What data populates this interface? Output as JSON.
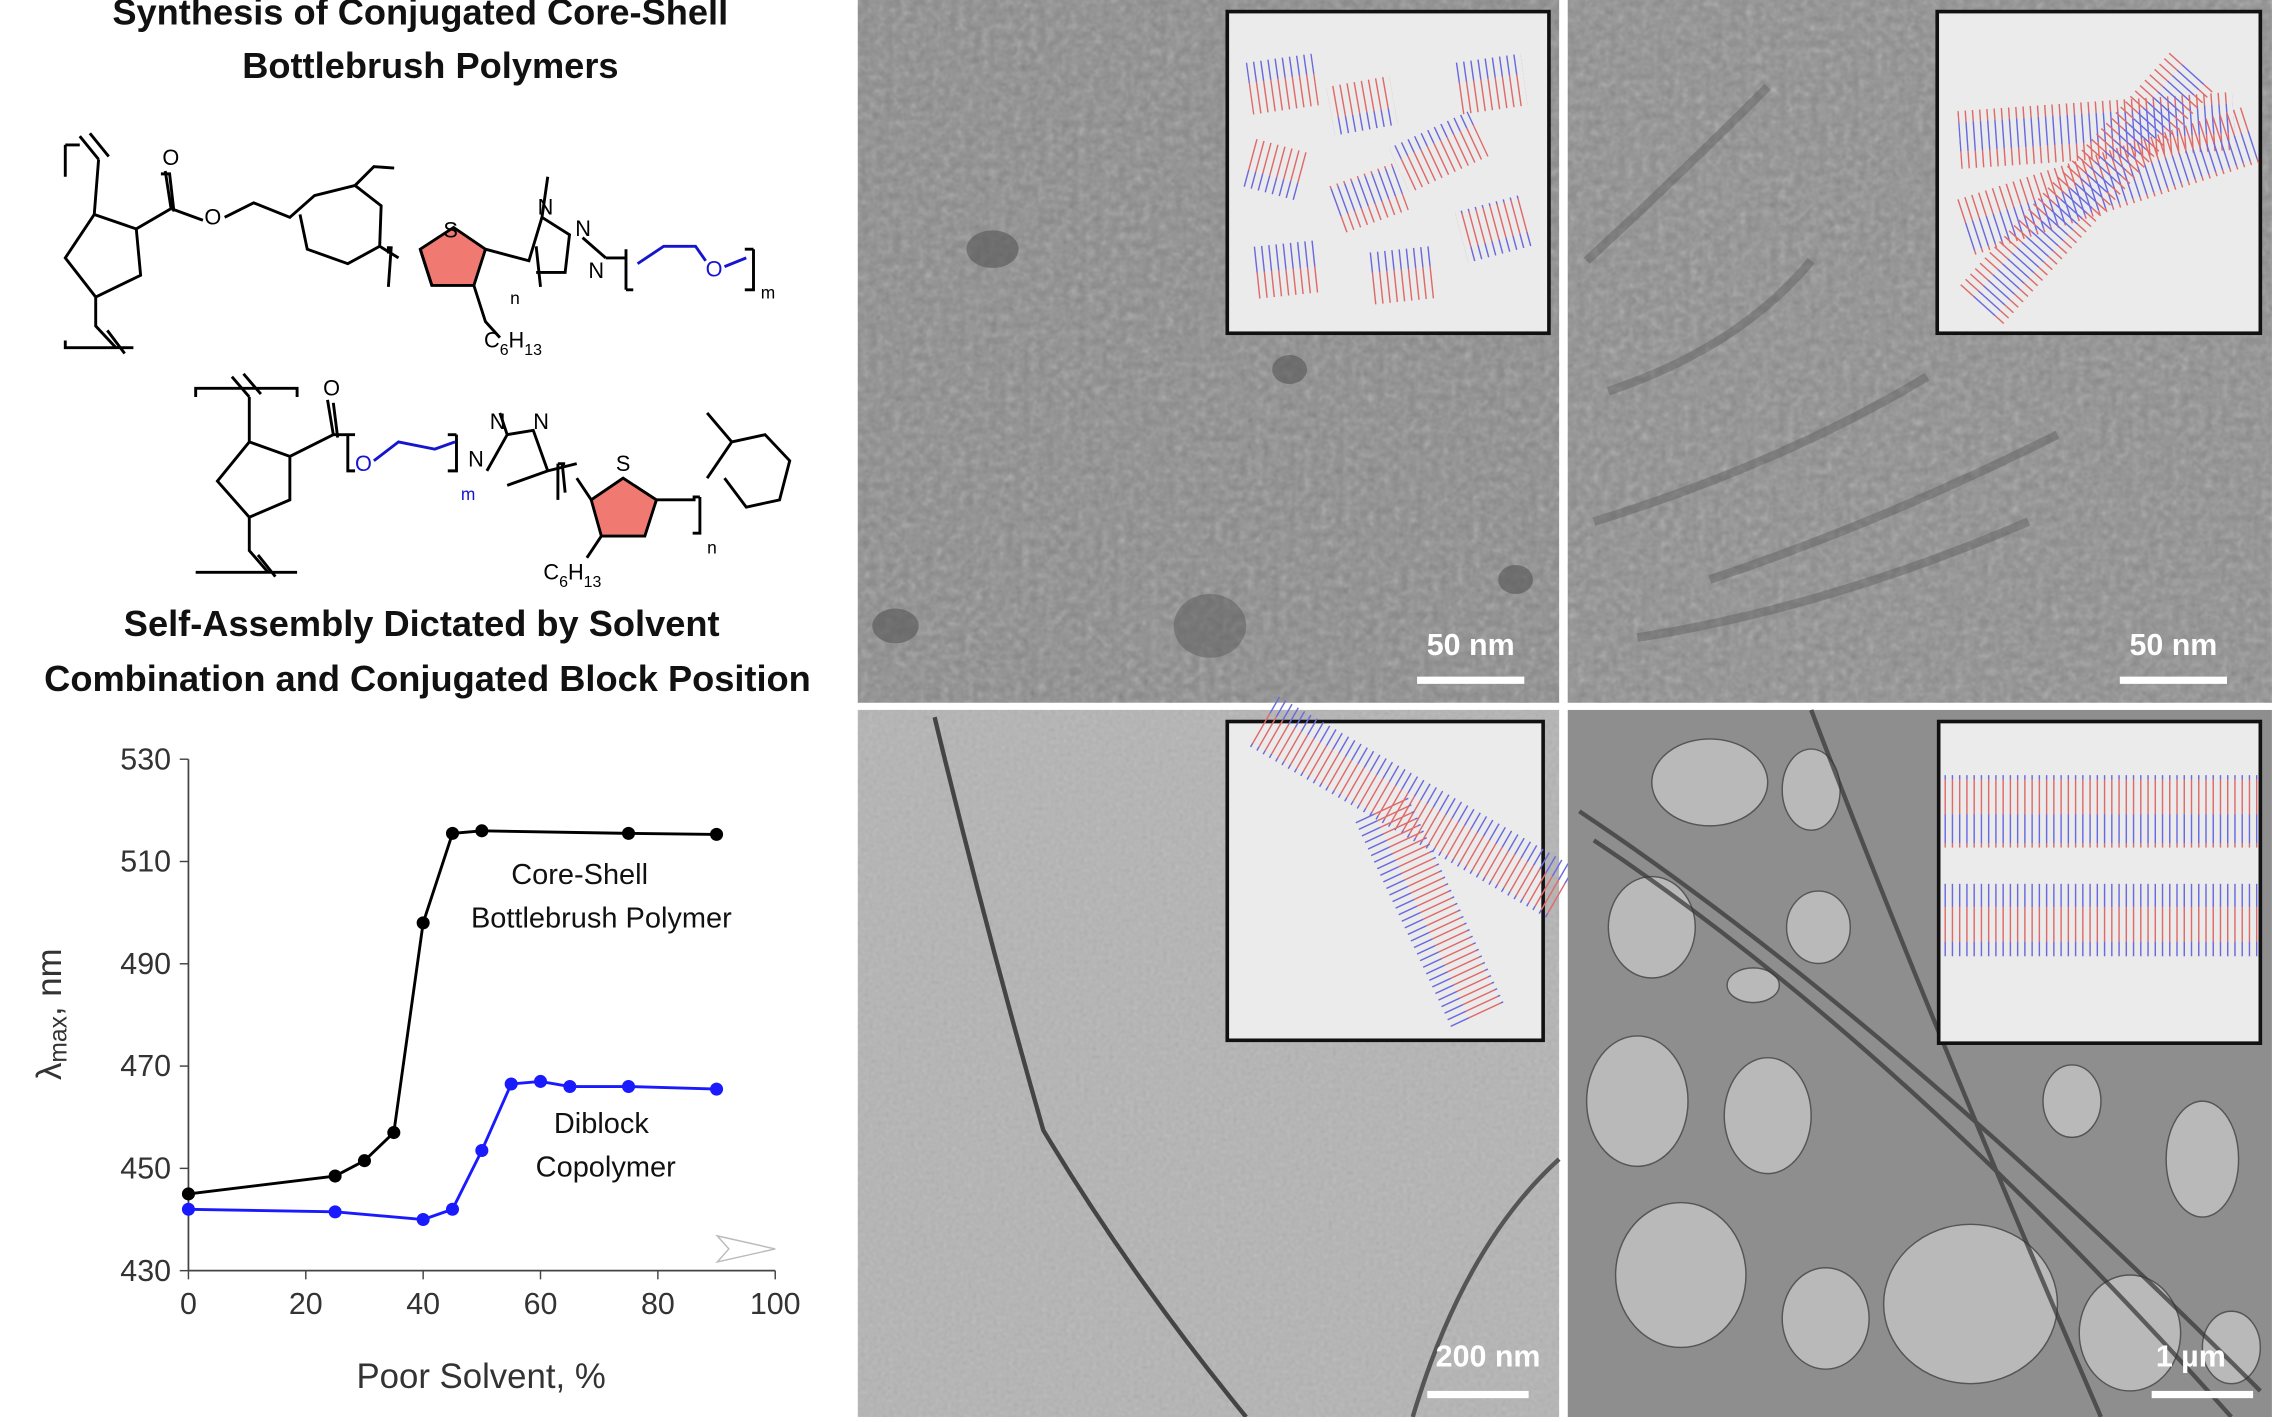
{
  "header": {
    "title_line1": "Synthesis of Conjugated Core-Shell",
    "title_line2": "Bottlebrush Polymers",
    "subtitle_line1": "Self-Assembly Dictated by Solvent",
    "subtitle_line2": "Combination and Conjugated Block Position"
  },
  "chemistry": {
    "top_labels": [
      "O",
      "O",
      "S",
      "N",
      "N",
      "N",
      "n",
      "O",
      "m",
      "C",
      "6",
      "H",
      "13"
    ],
    "bottom_labels": [
      "O",
      "O",
      "m",
      "N",
      "N",
      "N",
      "S",
      "n",
      "C",
      "6",
      "H",
      "13"
    ]
  },
  "chart_data": {
    "type": "line",
    "x_label": "Poor Solvent, %",
    "y_label": [
      "λ",
      "max",
      ", nm"
    ],
    "annotations": [
      "Core-Shell",
      "Bottlebrush Polymer",
      "Diblock",
      "Copolymer"
    ],
    "series": [
      {
        "color": "#000000",
        "x": [
          0,
          25,
          30,
          35,
          40,
          45,
          50,
          75,
          90
        ],
        "values": [
          445,
          448.5,
          451.5,
          457,
          498,
          515.5,
          516,
          515.5,
          515.3
        ]
      },
      {
        "color": "#1a1aff",
        "x": [
          0,
          25,
          40,
          45,
          50,
          55,
          60,
          65,
          75,
          90
        ],
        "values": [
          442,
          441.5,
          440,
          442,
          453.5,
          466.5,
          467,
          466,
          466,
          465.5
        ]
      }
    ],
    "xlim": [
      0,
      100
    ],
    "xticks": [
      0,
      20,
      40,
      60,
      80,
      100
    ],
    "ylim": [
      430,
      530
    ],
    "yticks": [
      430,
      450,
      470,
      490,
      510,
      530
    ],
    "grid": false
  },
  "micrographs": {
    "scale_bars": [
      "50 nm",
      "50 nm",
      "200 nm",
      "1 µm"
    ]
  }
}
